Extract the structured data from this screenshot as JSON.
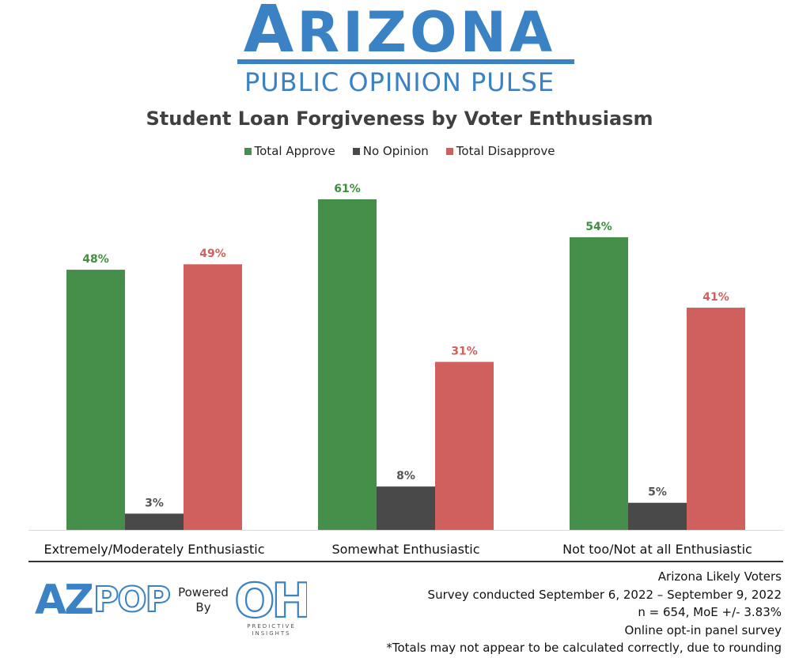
{
  "header": {
    "logo_first_letter": "A",
    "logo_rest": "RIZONA",
    "logo_subtitle": "PUBLIC OPINION PULSE"
  },
  "chart_data": {
    "type": "bar",
    "title": "Student Loan Forgiveness by Voter Enthusiasm",
    "categories": [
      "Extremely/Moderately Enthusiastic",
      "Somewhat Enthusiastic",
      "Not too/Not at all Enthusiastic"
    ],
    "series": [
      {
        "name": "Total Approve",
        "color": "#468f4a",
        "values": [
          48,
          61,
          54
        ],
        "labels": [
          "48%",
          "61%",
          "54%"
        ]
      },
      {
        "name": "No Opinion",
        "color": "#494949",
        "values": [
          3,
          8,
          5
        ],
        "labels": [
          "3%",
          "8%",
          "5%"
        ]
      },
      {
        "name": "Total Disapprove",
        "color": "#d0605e",
        "values": [
          49,
          31,
          41
        ],
        "labels": [
          "49%",
          "31%",
          "41%"
        ]
      }
    ],
    "ylim": [
      0,
      68
    ],
    "legend_position": "top-center",
    "grid": false,
    "label_colors": {
      "Total Approve": "#3f8f3f",
      "No Opinion": "#555555",
      "Total Disapprove": "#d0605e"
    }
  },
  "footer": {
    "az_logo_left": "AZ",
    "az_logo_right": "POP",
    "powered_by_line1": "Powered",
    "powered_by_line2": "By",
    "partner_logo_text": "OH",
    "partner_caption": "PREDICTIVE INSIGHTS",
    "notes": [
      "Arizona Likely Voters",
      "Survey conducted September 6, 2022 – September 9, 2022",
      "n = 654, MoE +/- 3.83%",
      "Online opt-in panel survey",
      "*Totals may not appear to be calculated correctly, due to rounding"
    ]
  }
}
